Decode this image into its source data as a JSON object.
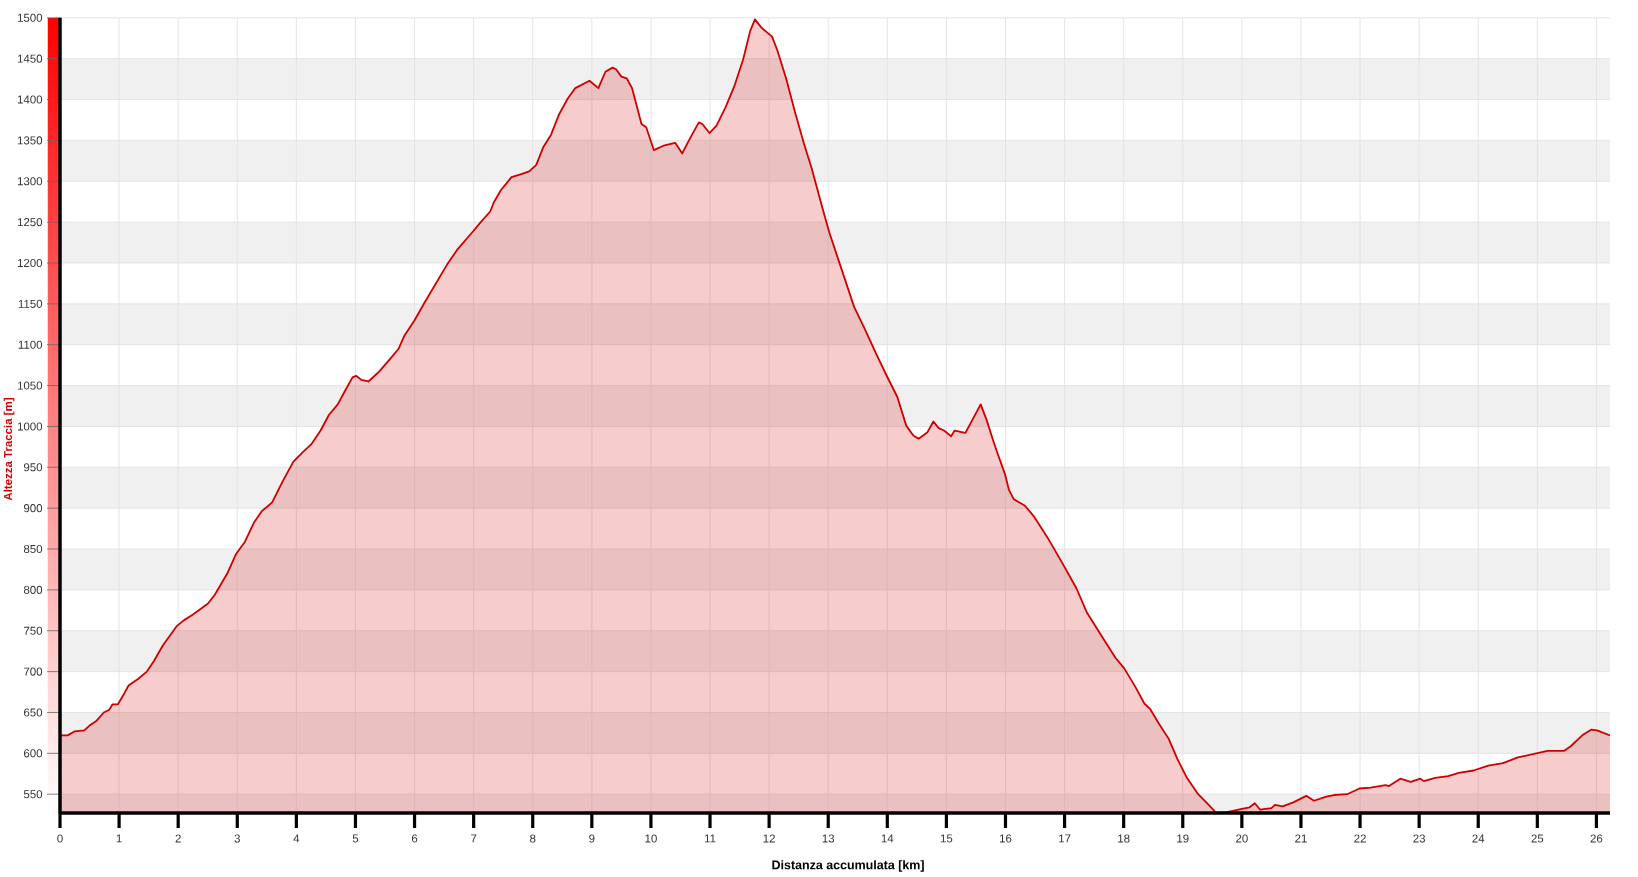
{
  "chart_data": {
    "type": "area",
    "xlabel": "Distanza accumulata [km]",
    "ylabel": "Altezza Traccia [m]",
    "x": [
      0,
      0.13,
      0.25,
      0.41,
      0.5,
      0.62,
      0.74,
      0.83,
      0.89,
      0.98,
      1.07,
      1.16,
      1.32,
      1.47,
      1.59,
      1.74,
      1.98,
      2.1,
      2.25,
      2.5,
      2.62,
      2.83,
      2.98,
      3.13,
      3.28,
      3.41,
      3.59,
      3.77,
      3.95,
      4.1,
      4.25,
      4.41,
      4.55,
      4.7,
      4.82,
      4.95,
      5.01,
      5.1,
      5.22,
      5.4,
      5.58,
      5.73,
      5.82,
      6.0,
      6.19,
      6.37,
      6.55,
      6.73,
      6.97,
      7.12,
      7.28,
      7.34,
      7.46,
      7.64,
      7.82,
      7.94,
      8.06,
      8.18,
      8.31,
      8.44,
      8.59,
      8.72,
      8.96,
      9.11,
      9.23,
      9.35,
      9.41,
      9.5,
      9.59,
      9.68,
      9.84,
      9.92,
      10.05,
      10.23,
      10.41,
      10.53,
      10.65,
      10.81,
      10.87,
      10.99,
      11.11,
      11.26,
      11.41,
      11.56,
      11.68,
      11.76,
      11.87,
      12.05,
      12.14,
      12.29,
      12.44,
      12.59,
      12.72,
      12.9,
      13.02,
      13.2,
      13.44,
      13.62,
      13.81,
      13.99,
      14.17,
      14.32,
      14.44,
      14.53,
      14.68,
      14.78,
      14.87,
      14.96,
      15.08,
      15.14,
      15.32,
      15.44,
      15.58,
      15.68,
      15.79,
      15.86,
      15.99,
      16.06,
      16.14,
      16.33,
      16.48,
      16.72,
      16.96,
      17.2,
      17.38,
      17.64,
      17.86,
      18.01,
      18.2,
      18.35,
      18.45,
      18.6,
      18.76,
      18.91,
      19.07,
      19.26,
      19.41,
      19.57,
      19.75,
      20.0,
      20.13,
      20.22,
      20.31,
      20.5,
      20.56,
      20.69,
      20.87,
      21.09,
      21.22,
      21.43,
      21.56,
      21.78,
      21.99,
      22.18,
      22.43,
      22.49,
      22.68,
      22.86,
      23.02,
      23.08,
      23.27,
      23.49,
      23.67,
      23.92,
      24.17,
      24.42,
      24.67,
      24.92,
      25.17,
      25.45,
      25.57,
      25.76,
      25.91,
      26.01,
      26.23
    ],
    "values": [
      622,
      622,
      627,
      628,
      634,
      640,
      650,
      653,
      660,
      660,
      671,
      683,
      691,
      700,
      713,
      732,
      756,
      763,
      770,
      783,
      794,
      820,
      844,
      859,
      882,
      896,
      907,
      933,
      957,
      968,
      978,
      995,
      1014,
      1027,
      1043,
      1060,
      1062,
      1057,
      1055,
      1067,
      1082,
      1095,
      1110,
      1130,
      1154,
      1176,
      1198,
      1217,
      1237,
      1250,
      1263,
      1274,
      1289,
      1305,
      1309,
      1312,
      1320,
      1342,
      1357,
      1381,
      1401,
      1414,
      1423,
      1414,
      1434,
      1439,
      1437,
      1428,
      1426,
      1414,
      1370,
      1366,
      1338,
      1344,
      1347,
      1334,
      1351,
      1372,
      1370,
      1359,
      1368,
      1390,
      1416,
      1449,
      1484,
      1498,
      1488,
      1477,
      1460,
      1425,
      1384,
      1346,
      1316,
      1268,
      1237,
      1198,
      1146,
      1119,
      1089,
      1062,
      1036,
      1001,
      989,
      985,
      993,
      1006,
      998,
      995,
      988,
      995,
      992,
      1008,
      1027,
      1008,
      983,
      968,
      942,
      922,
      911,
      903,
      890,
      863,
      833,
      802,
      772,
      742,
      717,
      704,
      681,
      661,
      654,
      636,
      618,
      593,
      570,
      550,
      539,
      527,
      528,
      532,
      534,
      539,
      531,
      533,
      537,
      535,
      540,
      548,
      542,
      547,
      549,
      550,
      557,
      558,
      561,
      560,
      569,
      565,
      569,
      566,
      570,
      572,
      576,
      579,
      585,
      588,
      595,
      599,
      603,
      603,
      609,
      622,
      629,
      628,
      622
    ],
    "color": "#d00000",
    "xlim": [
      0,
      26.23
    ],
    "ylim": [
      527,
      1500
    ],
    "xticks": [
      0,
      1,
      2,
      3,
      4,
      5,
      6,
      7,
      8,
      9,
      10,
      11,
      12,
      13,
      14,
      15,
      16,
      17,
      18,
      19,
      20,
      21,
      22,
      23,
      24,
      25,
      26
    ],
    "yticks": [
      550,
      600,
      650,
      700,
      750,
      800,
      850,
      900,
      950,
      1000,
      1050,
      1100,
      1150,
      1200,
      1250,
      1300,
      1350,
      1400,
      1450,
      1500
    ],
    "grid": true
  }
}
